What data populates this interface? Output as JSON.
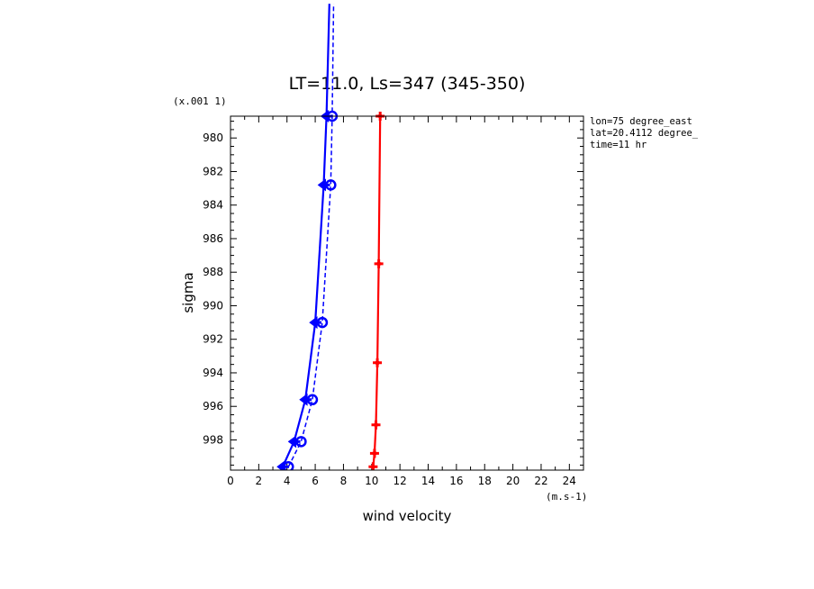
{
  "chart_data": {
    "type": "line",
    "title": "LT=11.0, Ls=347 (345-350)",
    "xlabel": "wind velocity",
    "ylabel": "sigma",
    "x_unit": "(m.s-1)",
    "y_unit": "(x.001 1)",
    "xlim": [
      0,
      25
    ],
    "ylim": [
      999.8,
      978.7
    ],
    "x_ticks": [
      0,
      2,
      4,
      6,
      8,
      10,
      12,
      14,
      16,
      18,
      20,
      22,
      24
    ],
    "y_ticks": [
      980,
      982,
      984,
      986,
      988,
      990,
      992,
      994,
      996,
      998
    ],
    "grid": false,
    "annotations": [
      "lon=75 degree_east",
      "lat=20.4112 degree_",
      "time=11 hr"
    ],
    "series": [
      {
        "color": "#0000ff",
        "style": "solid",
        "marker": "arrow-left",
        "points": [
          [
            3.7,
            999.6
          ],
          [
            4.5,
            998.1
          ],
          [
            5.3,
            995.6
          ],
          [
            6.0,
            991.0
          ],
          [
            6.6,
            982.8
          ],
          [
            6.8,
            978.7
          ],
          [
            7.0,
            972.0
          ]
        ]
      },
      {
        "color": "#0000ff",
        "style": "dashed",
        "marker": "circle",
        "points": [
          [
            4.1,
            999.6
          ],
          [
            5.0,
            998.1
          ],
          [
            5.8,
            995.6
          ],
          [
            6.5,
            991.0
          ],
          [
            7.1,
            982.8
          ],
          [
            7.2,
            978.7
          ],
          [
            7.3,
            972.0
          ]
        ]
      },
      {
        "color": "#ff0000",
        "style": "solid",
        "marker": "plus",
        "points": [
          [
            10.1,
            999.6
          ],
          [
            10.2,
            998.8
          ],
          [
            10.3,
            997.1
          ],
          [
            10.4,
            993.4
          ],
          [
            10.5,
            987.5
          ],
          [
            10.6,
            978.7
          ]
        ]
      }
    ]
  }
}
